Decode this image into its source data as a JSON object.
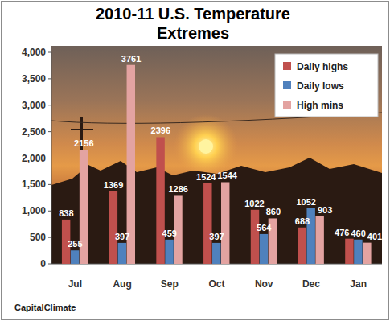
{
  "chart_data": {
    "type": "bar",
    "title": "2010-11 U.S. Temperature Extremes",
    "categories": [
      "Jul",
      "Aug",
      "Sep",
      "Oct",
      "Nov",
      "Dec",
      "Jan"
    ],
    "series": [
      {
        "name": "Daily highs",
        "color": "#c0504d",
        "values": [
          838,
          1369,
          2396,
          1524,
          1022,
          688,
          476
        ]
      },
      {
        "name": "Daily lows",
        "color": "#4f81bd",
        "values": [
          255,
          397,
          459,
          397,
          564,
          1052,
          460
        ]
      },
      {
        "name": "High mins",
        "color": "#e3a3a1",
        "values": [
          2156,
          3761,
          1286,
          1544,
          860,
          903,
          401
        ]
      }
    ],
    "ylim": [
      0,
      4000
    ],
    "yticks": [
      0,
      500,
      {
        "value": 1000,
        "label": "1,000"
      },
      {
        "value": 1500,
        "label": "1,500"
      },
      {
        "value": 2000,
        "label": "2,000"
      },
      {
        "value": 2500,
        "label": "2,500"
      },
      {
        "value": 3000,
        "label": "3,000"
      },
      {
        "value": 3500,
        "label": "3,500"
      },
      {
        "value": 4000,
        "label": "4,000"
      }
    ],
    "grid": false,
    "legend": "top-right",
    "data_labels": true,
    "annotations": [
      "CapitalClimate"
    ]
  }
}
